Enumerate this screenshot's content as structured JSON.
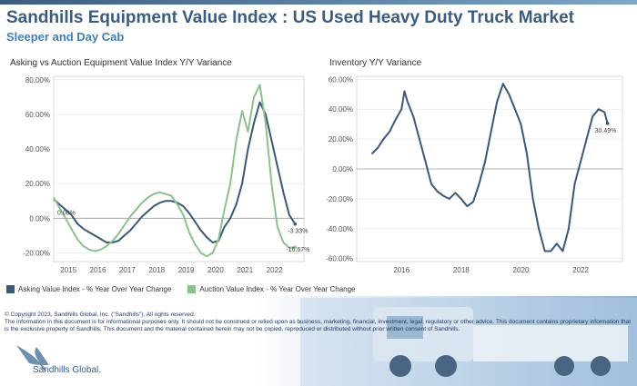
{
  "header": {
    "title": "Sandhills Equipment Value Index : US Used Heavy Duty Truck Market",
    "subtitle": "Sleeper and Day Cab"
  },
  "chart_data": [
    {
      "type": "line",
      "title": "Asking vs Auction Equipment Value Index Y/Y Variance",
      "x_ticks": [
        "2015",
        "2016",
        "2017",
        "2018",
        "2019",
        "2020",
        "2021",
        "2022"
      ],
      "y_ticks": [
        "80.00%",
        "60.00%",
        "40.00%",
        "20.00%",
        "0.00%",
        "-20.00%"
      ],
      "ylim": [
        -25,
        82
      ],
      "xlim": [
        2014.5,
        2023.0
      ],
      "grid": true,
      "series": [
        {
          "name": "Asking Value Index - % Year Over Year Change",
          "color": "#3b5876",
          "x": [
            2014.5,
            2014.7,
            2014.9,
            2015.1,
            2015.3,
            2015.5,
            2015.7,
            2015.9,
            2016.1,
            2016.3,
            2016.5,
            2016.7,
            2016.9,
            2017.1,
            2017.3,
            2017.5,
            2017.7,
            2017.9,
            2018.1,
            2018.3,
            2018.5,
            2018.7,
            2018.9,
            2019.1,
            2019.3,
            2019.5,
            2019.7,
            2019.9,
            2020.1,
            2020.3,
            2020.5,
            2020.7,
            2020.9,
            2021.1,
            2021.3,
            2021.5,
            2021.7,
            2021.9,
            2022.1,
            2022.3,
            2022.5,
            2022.7
          ],
          "values": [
            11,
            8,
            5,
            2,
            -3,
            -6,
            -8,
            -10,
            -12,
            -14,
            -14,
            -13,
            -10,
            -7,
            -3,
            1,
            4,
            7,
            9,
            10,
            10,
            9,
            7,
            3,
            -2,
            -7,
            -11,
            -14,
            -13,
            -5,
            0,
            8,
            20,
            40,
            55,
            67,
            60,
            45,
            30,
            15,
            2,
            -3.33
          ]
        },
        {
          "name": "Auction Value Index - % Year Over Year Change",
          "color": "#8cc08e",
          "x": [
            2014.5,
            2014.7,
            2014.9,
            2015.1,
            2015.3,
            2015.5,
            2015.7,
            2015.9,
            2016.1,
            2016.3,
            2016.5,
            2016.7,
            2016.9,
            2017.1,
            2017.3,
            2017.5,
            2017.7,
            2017.9,
            2018.1,
            2018.3,
            2018.5,
            2018.7,
            2018.9,
            2019.1,
            2019.3,
            2019.5,
            2019.7,
            2019.9,
            2020.1,
            2020.3,
            2020.5,
            2020.7,
            2020.9,
            2021.1,
            2021.3,
            2021.5,
            2021.7,
            2021.9,
            2022.1,
            2022.3,
            2022.5,
            2022.7
          ],
          "values": [
            12,
            6,
            0,
            -6,
            -12,
            -16,
            -18,
            -19,
            -18,
            -16,
            -13,
            -9,
            -4,
            1,
            5,
            9,
            12,
            14,
            15,
            14,
            13,
            8,
            2,
            -8,
            -15,
            -20,
            -22,
            -20,
            -12,
            5,
            20,
            45,
            62,
            50,
            70,
            77,
            55,
            20,
            -5,
            -14,
            -17,
            -16.67
          ]
        }
      ],
      "annotations": [
        "0.00%",
        "-3.33%",
        "-16.67%"
      ]
    },
    {
      "type": "line",
      "title": "Inventory Y/Y Variance",
      "x_ticks": [
        "2016",
        "2018",
        "2020",
        "2022"
      ],
      "y_ticks": [
        "60.00%",
        "40.00%",
        "20.00%",
        "0.00%",
        "-20.00%",
        "-40.00%",
        "-60.00%"
      ],
      "ylim": [
        -62,
        62
      ],
      "xlim": [
        2014.5,
        2023.4
      ],
      "grid": true,
      "series": [
        {
          "name": "Inventory Y/Y Variance",
          "color": "#3b5876",
          "x": [
            2015.0,
            2015.2,
            2015.4,
            2015.6,
            2015.8,
            2016.0,
            2016.1,
            2016.2,
            2016.4,
            2016.6,
            2016.8,
            2017.0,
            2017.2,
            2017.4,
            2017.6,
            2017.8,
            2018.0,
            2018.2,
            2018.4,
            2018.6,
            2018.8,
            2019.0,
            2019.2,
            2019.4,
            2019.6,
            2019.8,
            2020.0,
            2020.2,
            2020.4,
            2020.6,
            2020.8,
            2021.0,
            2021.2,
            2021.4,
            2021.6,
            2021.8,
            2022.0,
            2022.2,
            2022.4,
            2022.6,
            2022.8,
            2022.9
          ],
          "values": [
            10,
            14,
            20,
            25,
            33,
            40,
            52,
            45,
            35,
            20,
            5,
            -10,
            -15,
            -18,
            -20,
            -16,
            -20,
            -25,
            -22,
            -10,
            5,
            25,
            45,
            57,
            50,
            40,
            30,
            10,
            -20,
            -40,
            -55,
            -55,
            -50,
            -55,
            -40,
            -10,
            5,
            20,
            35,
            40,
            38,
            30.49
          ]
        }
      ],
      "annotations": [
        "30.49%"
      ]
    }
  ],
  "legend": {
    "asking": "Asking Value Index - % Year Over Year Change",
    "auction": "Auction Value Index - % Year Over Year Change"
  },
  "footer": {
    "copyright": "© Copyright 2023, Sandhills Global, Inc. (\"Sandhills\"). All rights reserved.",
    "disclaimer": "The information in this document is for informational purposes only. It should not be construed or relied upon as business, marketing, financial, investment, legal, regulatory or other advice. This document contains proprietary information that is the exclusive property of Sandhills. This document and the material contained herein may not be copied, reproduced or distributed without prior written consent of Sandhills.",
    "logo_text": "Sandhills Global."
  },
  "colors": {
    "title": "#3b5c7e",
    "subtitle": "#3f7fb5",
    "asking": "#3b5876",
    "auction": "#8cc08e"
  }
}
